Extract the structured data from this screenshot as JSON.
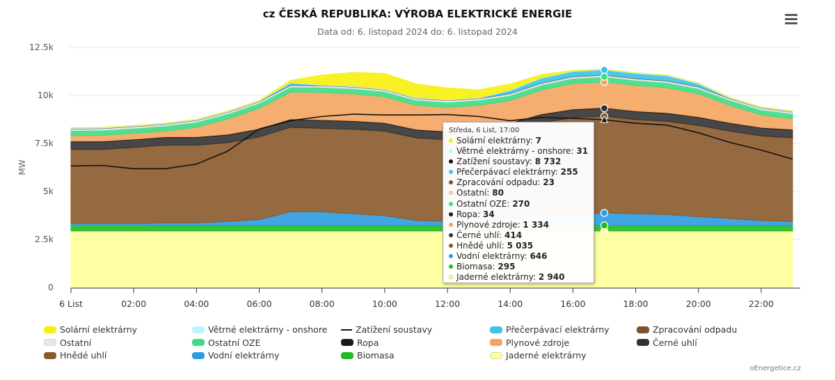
{
  "title": "cz ČESKÁ REPUBLIKA: VÝROBA ELEKTRICKÉ ENERGIE",
  "subtitle": "Data od: 6. listopad 2024 do: 6. listopad 2024",
  "credits": "oEnergetice.cz",
  "menu_icon": "hamburger-menu-icon",
  "chart_data": {
    "type": "area",
    "stacked": true,
    "ylabel": "MW",
    "ylim": [
      0,
      12500
    ],
    "yticks": [
      "0",
      "2.5k",
      "5k",
      "7.5k",
      "10k",
      "12.5k"
    ],
    "yticks_values": [
      0,
      2500,
      5000,
      7500,
      10000,
      12500
    ],
    "x": [
      0,
      1,
      2,
      3,
      4,
      5,
      6,
      7,
      8,
      9,
      10,
      11,
      12,
      13,
      14,
      15,
      16,
      17,
      18,
      19,
      20,
      21,
      22,
      23
    ],
    "xticks": [
      "6 List",
      "02:00",
      "04:00",
      "06:00",
      "08:00",
      "10:00",
      "12:00",
      "14:00",
      "16:00",
      "18:00",
      "20:00",
      "22:00"
    ],
    "xticks_hours": [
      0,
      2,
      4,
      6,
      8,
      10,
      12,
      14,
      16,
      18,
      20,
      22
    ],
    "grid": true,
    "legend_position": "bottom",
    "series": [
      {
        "name": "Jaderné elektrárny",
        "color": "#ffff99",
        "values": [
          2940,
          2940,
          2940,
          2940,
          2940,
          2940,
          2940,
          2940,
          2940,
          2940,
          2940,
          2940,
          2940,
          2940,
          2940,
          2940,
          2940,
          2940,
          2940,
          2940,
          2940,
          2940,
          2940,
          2940
        ]
      },
      {
        "name": "Biomasa",
        "color": "#22bb22",
        "values": [
          295,
          295,
          295,
          295,
          295,
          295,
          295,
          295,
          295,
          295,
          295,
          295,
          295,
          295,
          295,
          295,
          295,
          295,
          295,
          295,
          295,
          295,
          295,
          295
        ]
      },
      {
        "name": "Vodní elektrárny",
        "color": "#2d9be0",
        "values": [
          100,
          100,
          100,
          120,
          120,
          200,
          300,
          700,
          700,
          600,
          500,
          250,
          200,
          250,
          300,
          500,
          600,
          646,
          600,
          560,
          450,
          350,
          250,
          200
        ]
      },
      {
        "name": "Hnědé uhlí",
        "color": "#8b5a2b",
        "values": [
          3850,
          3850,
          3950,
          4050,
          4050,
          4100,
          4300,
          4400,
          4350,
          4400,
          4400,
          4300,
          4250,
          4300,
          4600,
          4850,
          5000,
          5035,
          4900,
          4850,
          4750,
          4550,
          4400,
          4350
        ]
      },
      {
        "name": "Černé uhlí",
        "color": "#333333",
        "values": [
          400,
          400,
          400,
          400,
          400,
          400,
          400,
          400,
          410,
          410,
          410,
          410,
          410,
          410,
          410,
          410,
          414,
          414,
          414,
          414,
          414,
          410,
          410,
          410
        ]
      },
      {
        "name": "Ropa",
        "color": "#1a1a1a",
        "values": [
          34,
          34,
          34,
          34,
          34,
          34,
          34,
          34,
          34,
          34,
          34,
          34,
          34,
          34,
          34,
          34,
          34,
          34,
          34,
          34,
          34,
          34,
          34,
          34
        ]
      },
      {
        "name": "Plynové zdroje",
        "color": "#f4a460",
        "values": [
          280,
          300,
          300,
          300,
          500,
          800,
          1050,
          1400,
          1420,
          1400,
          1350,
          1250,
          1250,
          1250,
          1150,
          1250,
          1334,
          1334,
          1334,
          1300,
          1200,
          900,
          650,
          550
        ]
      },
      {
        "name": "Ostatní OZE",
        "color": "#3ddc84",
        "values": [
          270,
          270,
          270,
          270,
          270,
          270,
          270,
          270,
          270,
          270,
          270,
          270,
          270,
          270,
          270,
          270,
          270,
          270,
          270,
          270,
          270,
          270,
          270,
          270
        ]
      },
      {
        "name": "Ostatní",
        "color": "#e8e8e8",
        "values": [
          80,
          80,
          80,
          80,
          80,
          80,
          80,
          80,
          80,
          80,
          80,
          80,
          80,
          80,
          80,
          80,
          80,
          80,
          80,
          80,
          80,
          80,
          80,
          80
        ]
      },
      {
        "name": "Zpracování odpadu",
        "color": "#7a5230",
        "values": [
          23,
          23,
          23,
          23,
          23,
          23,
          23,
          23,
          23,
          23,
          23,
          23,
          23,
          23,
          23,
          23,
          23,
          23,
          23,
          23,
          23,
          23,
          23,
          23
        ]
      },
      {
        "name": "Přečerpávací elektrárny",
        "color": "#3cc3e8",
        "values": [
          0,
          0,
          0,
          0,
          0,
          0,
          0,
          100,
          0,
          0,
          0,
          0,
          0,
          0,
          150,
          250,
          255,
          255,
          255,
          255,
          150,
          0,
          0,
          0
        ]
      },
      {
        "name": "Větrné elektrárny - onshore",
        "color": "#bff3ff",
        "values": [
          40,
          40,
          40,
          40,
          40,
          40,
          40,
          40,
          40,
          40,
          40,
          40,
          35,
          35,
          35,
          35,
          31,
          31,
          31,
          35,
          35,
          40,
          40,
          40
        ]
      },
      {
        "name": "Solární elektrárny",
        "color": "#f7f00b",
        "values": [
          0,
          0,
          0,
          0,
          0,
          0,
          0,
          100,
          500,
          700,
          800,
          700,
          600,
          400,
          300,
          150,
          20,
          7,
          0,
          0,
          0,
          0,
          0,
          0
        ]
      }
    ],
    "line_series": [
      {
        "name": "Zatížení soustavy",
        "color": "#111111",
        "values": [
          6320,
          6350,
          6180,
          6180,
          6420,
          7100,
          8250,
          8680,
          8900,
          9020,
          8980,
          8980,
          9000,
          8900,
          8680,
          8850,
          8800,
          8732,
          8550,
          8450,
          8050,
          7550,
          7150,
          6680
        ]
      }
    ]
  },
  "legend": [
    {
      "label": "Solární elektrárny",
      "color": "#f7f00b",
      "kind": "area"
    },
    {
      "label": "Větrné elektrárny - onshore",
      "color": "#bff3ff",
      "kind": "area"
    },
    {
      "label": "Zatížení soustavy",
      "color": "#111111",
      "kind": "line"
    },
    {
      "label": "Přečerpávací elektrárny",
      "color": "#3cc3e8",
      "kind": "area"
    },
    {
      "label": "Zpracování odpadu",
      "color": "#7a5230",
      "kind": "area"
    },
    {
      "label": "Ostatní",
      "color": "#e8e8e8",
      "kind": "area"
    },
    {
      "label": "Ostatní OZE",
      "color": "#3ddc84",
      "kind": "area"
    },
    {
      "label": "Ropa",
      "color": "#1a1a1a",
      "kind": "area"
    },
    {
      "label": "Plynové zdroje",
      "color": "#f4a460",
      "kind": "area"
    },
    {
      "label": "Černé uhlí",
      "color": "#333333",
      "kind": "area"
    },
    {
      "label": "Hnědé uhlí",
      "color": "#8b5a2b",
      "kind": "area"
    },
    {
      "label": "Vodní elektrárny",
      "color": "#2d9be0",
      "kind": "area"
    },
    {
      "label": "Biomasa",
      "color": "#22bb22",
      "kind": "area"
    },
    {
      "label": "Jaderné elektrárny",
      "color": "#ffff99",
      "kind": "area"
    }
  ],
  "tooltip": {
    "header": "Středa, 6 List, 17:00",
    "hover_hour": 17,
    "rows": [
      {
        "color": "#f7f00b",
        "label": "Solární elektrárny: ",
        "value": "7"
      },
      {
        "color": "#bff3ff",
        "label": "Větrné elektrárny - onshore: ",
        "value": "31"
      },
      {
        "color": "#111111",
        "label": "Zatížení soustavy: ",
        "value": "8 732"
      },
      {
        "color": "#3cc3e8",
        "label": "Přečerpávací elektrárny: ",
        "value": "255"
      },
      {
        "color": "#7a5230",
        "label": "Zpracování odpadu: ",
        "value": "23"
      },
      {
        "color": "#e0e0e0",
        "label": "Ostatní: ",
        "value": "80"
      },
      {
        "color": "#3ddc84",
        "label": "Ostatní OZE: ",
        "value": "270"
      },
      {
        "color": "#1a1a1a",
        "label": "Ropa: ",
        "value": "34"
      },
      {
        "color": "#f4a460",
        "label": "Plynové zdroje: ",
        "value": "1 334"
      },
      {
        "color": "#333333",
        "label": "Černé uhlí: ",
        "value": "414"
      },
      {
        "color": "#8b5a2b",
        "label": "Hnědé uhlí: ",
        "value": "5 035"
      },
      {
        "color": "#2d9be0",
        "label": "Vodní elektrárny: ",
        "value": "646"
      },
      {
        "color": "#22bb22",
        "label": "Biomasa: ",
        "value": "295"
      },
      {
        "color": "#ffff99",
        "label": "Jaderné elektrárny: ",
        "value": "2 940"
      }
    ]
  }
}
